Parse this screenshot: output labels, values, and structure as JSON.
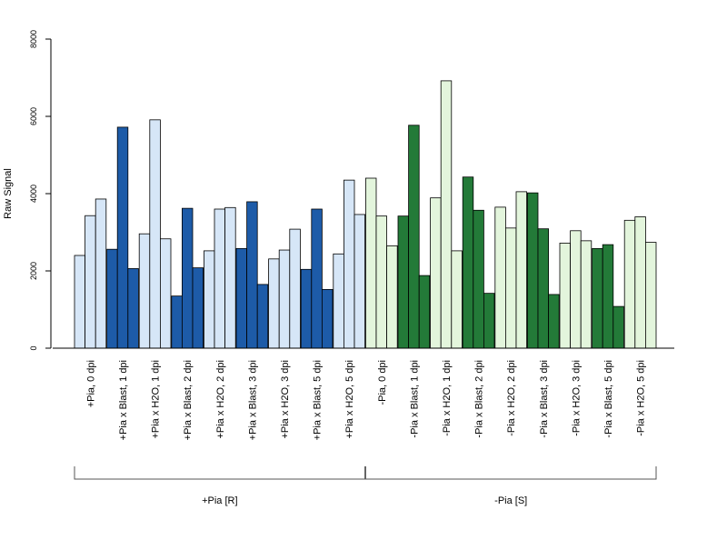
{
  "chart_data": {
    "type": "bar",
    "title": "",
    "xlabel": "",
    "ylabel": "Raw Signal",
    "ylim": [
      0,
      8000
    ],
    "y_ticks": [
      0,
      2000,
      4000,
      6000,
      8000
    ],
    "grid": false,
    "legend": "none",
    "categories": [
      "+Pia, 0 dpi",
      "+Pia x Blast, 1 dpi",
      "+Pia x H2O, 1 dpi",
      "+Pia x Blast, 2 dpi",
      "+Pia x H2O, 2 dpi",
      "+Pia x Blast, 3 dpi",
      "+Pia x H2O, 3 dpi",
      "+Pia x Blast, 5 dpi",
      "+Pia x H2O, 5 dpi",
      "-Pia, 0 dpi",
      "-Pia x Blast, 1 dpi",
      "-Pia x H2O, 1 dpi",
      "-Pia x Blast, 2 dpi",
      "-Pia x H2O, 2 dpi",
      "-Pia x Blast, 3 dpi",
      "-Pia x H2O, 3 dpi",
      "-Pia x Blast, 5 dpi",
      "-Pia x H2O, 5 dpi"
    ],
    "replicates": [
      [
        2400,
        3430,
        3860
      ],
      [
        2560,
        5720,
        2060
      ],
      [
        2960,
        5910,
        2830
      ],
      [
        1350,
        3620,
        2080
      ],
      [
        2520,
        3600,
        3640
      ],
      [
        2580,
        3790,
        1650
      ],
      [
        2310,
        2540,
        3080
      ],
      [
        2040,
        3600,
        1520
      ],
      [
        2440,
        4350,
        3460
      ],
      [
        4400,
        3420,
        2650
      ],
      [
        3420,
        5770,
        1880
      ],
      [
        3890,
        6920,
        2520
      ],
      [
        4430,
        3570,
        1420
      ],
      [
        3650,
        3110,
        4050
      ],
      [
        4020,
        3090,
        1390
      ],
      [
        2720,
        3040,
        2780
      ],
      [
        2580,
        2680,
        1080
      ],
      [
        3310,
        3400,
        2740
      ]
    ],
    "group_colors": [
      "#d6e6f7",
      "#1d5ba8",
      "#d6e6f7",
      "#1d5ba8",
      "#d6e6f7",
      "#1d5ba8",
      "#d6e6f7",
      "#1d5ba8",
      "#d6e6f7",
      "#e3f5dc",
      "#237a38",
      "#e3f5dc",
      "#237a38",
      "#e3f5dc",
      "#237a38",
      "#e3f5dc",
      "#237a38",
      "#e3f5dc"
    ],
    "bar_border_color": "#000000",
    "brackets": [
      {
        "label": "+Pia [R]",
        "from": 0,
        "to": 8
      },
      {
        "label": "-Pia [S]",
        "from": 9,
        "to": 17
      }
    ]
  }
}
